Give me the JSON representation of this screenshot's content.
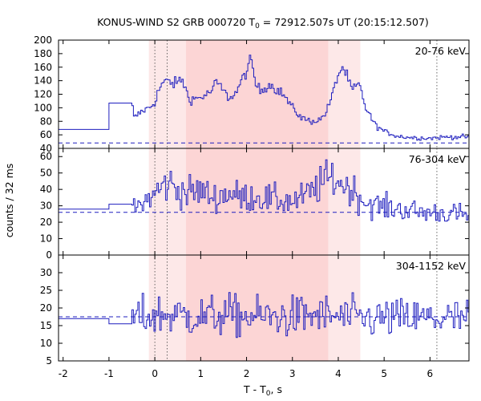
{
  "chart_data": {
    "type": "line",
    "title_prefix": "KONUS-WIND S2 GRB 000720 T",
    "title_sub": "0",
    "title_suffix": " = 72912.507s UT (20:15:12.507)",
    "xlabel_main": "T - T",
    "xlabel_sub": "0",
    "xlabel_suffix": ", s",
    "ylabel": "counts / 32 ms",
    "xlim": [
      -2.1,
      6.85
    ],
    "x_ticks": [
      -2,
      -1,
      0,
      1,
      2,
      3,
      4,
      5,
      6
    ],
    "shaded_regions": [
      {
        "x0": -0.13,
        "x1": 4.48,
        "color": "#fde8e8"
      },
      {
        "x0": 0.68,
        "x1": 3.78,
        "color": "#fcd5d5"
      }
    ],
    "vertical_lines": [
      0.0,
      0.27,
      6.15
    ],
    "line_color": "#1f1fbf",
    "panels": [
      {
        "label": "20-76 keV",
        "ylim": [
          40,
          200
        ],
        "y_ticks": [
          40,
          60,
          80,
          100,
          120,
          140,
          160,
          180,
          200
        ],
        "background": 48,
        "anchors": [
          [
            -2.1,
            68
          ],
          [
            -1.0,
            68
          ],
          [
            -1.0,
            107
          ],
          [
            -0.5,
            107
          ],
          [
            -0.45,
            85
          ],
          [
            -0.28,
            95
          ],
          [
            -0.12,
            100
          ],
          [
            0.0,
            108
          ],
          [
            0.05,
            120
          ],
          [
            0.15,
            135
          ],
          [
            0.3,
            140
          ],
          [
            0.4,
            135
          ],
          [
            0.6,
            142
          ],
          [
            0.75,
            112
          ],
          [
            1.0,
            115
          ],
          [
            1.2,
            122
          ],
          [
            1.35,
            138
          ],
          [
            1.5,
            125
          ],
          [
            1.6,
            115
          ],
          [
            1.75,
            120
          ],
          [
            1.9,
            140
          ],
          [
            2.1,
            170
          ],
          [
            2.2,
            135
          ],
          [
            2.3,
            125
          ],
          [
            2.5,
            135
          ],
          [
            2.6,
            130
          ],
          [
            2.8,
            120
          ],
          [
            3.0,
            100
          ],
          [
            3.2,
            85
          ],
          [
            3.4,
            80
          ],
          [
            3.6,
            82
          ],
          [
            3.75,
            95
          ],
          [
            3.9,
            125
          ],
          [
            4.0,
            150
          ],
          [
            4.1,
            160
          ],
          [
            4.2,
            145
          ],
          [
            4.3,
            125
          ],
          [
            4.45,
            135
          ],
          [
            4.6,
            100
          ],
          [
            4.8,
            75
          ],
          [
            5.0,
            65
          ],
          [
            5.3,
            58
          ],
          [
            5.6,
            56
          ],
          [
            6.0,
            55
          ],
          [
            6.4,
            57
          ],
          [
            6.85,
            57
          ]
        ]
      },
      {
        "label": "76-304 keV",
        "ylim": [
          0,
          65
        ],
        "y_ticks": [
          0,
          10,
          20,
          30,
          40,
          50,
          60
        ],
        "background": 26,
        "anchors": [
          [
            -2.1,
            28
          ],
          [
            -1.0,
            28
          ],
          [
            -1.0,
            31
          ],
          [
            -0.5,
            31
          ],
          [
            -0.45,
            28
          ],
          [
            -0.2,
            33
          ],
          [
            -0.05,
            36
          ],
          [
            0.1,
            40
          ],
          [
            0.3,
            44
          ],
          [
            0.5,
            40
          ],
          [
            0.7,
            38
          ],
          [
            1.0,
            39
          ],
          [
            1.3,
            35
          ],
          [
            1.6,
            38
          ],
          [
            1.9,
            35
          ],
          [
            2.2,
            36
          ],
          [
            2.5,
            34
          ],
          [
            2.8,
            33
          ],
          [
            3.1,
            33
          ],
          [
            3.4,
            38
          ],
          [
            3.7,
            45
          ],
          [
            3.9,
            47
          ],
          [
            4.1,
            43
          ],
          [
            4.3,
            40
          ],
          [
            4.6,
            32
          ],
          [
            5.0,
            29
          ],
          [
            5.4,
            28
          ],
          [
            5.8,
            26
          ],
          [
            6.2,
            26
          ],
          [
            6.5,
            25
          ],
          [
            6.85,
            24
          ]
        ]
      },
      {
        "label": "304-1152 keV",
        "ylim": [
          5,
          35
        ],
        "y_ticks": [
          5,
          10,
          15,
          20,
          25,
          30
        ],
        "background": 17.5,
        "anchors": [
          [
            -2.1,
            17
          ],
          [
            -1.0,
            17
          ],
          [
            -1.0,
            15.5
          ],
          [
            -0.5,
            15.5
          ],
          [
            -0.45,
            17
          ],
          [
            0.0,
            18
          ],
          [
            0.5,
            18
          ],
          [
            1.0,
            17.5
          ],
          [
            1.5,
            18
          ],
          [
            2.0,
            17.5
          ],
          [
            2.5,
            17.5
          ],
          [
            3.0,
            17.5
          ],
          [
            3.5,
            18
          ],
          [
            4.0,
            17.5
          ],
          [
            4.5,
            17
          ],
          [
            5.0,
            17
          ],
          [
            5.5,
            17
          ],
          [
            6.0,
            17
          ],
          [
            6.5,
            17
          ],
          [
            6.85,
            17
          ]
        ]
      }
    ]
  }
}
